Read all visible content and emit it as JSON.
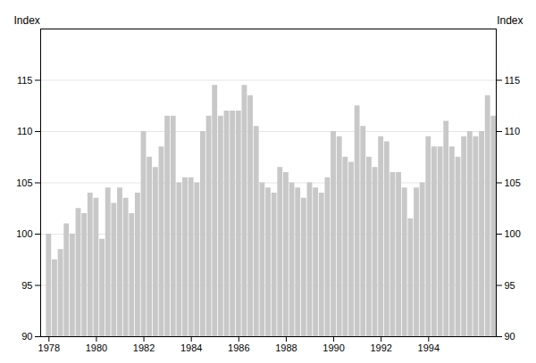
{
  "chart_data": {
    "type": "bar",
    "ylabel": "Index",
    "x": [
      1978,
      1978.25,
      1978.5,
      1978.75,
      1979,
      1979.25,
      1979.5,
      1979.75,
      1980,
      1980.25,
      1980.5,
      1980.75,
      1981,
      1981.25,
      1981.5,
      1981.75,
      1982,
      1982.25,
      1982.5,
      1982.75,
      1983,
      1983.25,
      1983.5,
      1983.75,
      1984,
      1984.25,
      1984.5,
      1984.75,
      1985,
      1985.25,
      1985.5,
      1985.75,
      1986,
      1986.25,
      1986.5,
      1986.75,
      1987,
      1987.25,
      1987.5,
      1987.75,
      1988,
      1988.25,
      1988.5,
      1988.75,
      1989,
      1989.25,
      1989.5,
      1989.75,
      1990,
      1990.25,
      1990.5,
      1990.75,
      1991,
      1991.25,
      1991.5,
      1991.75,
      1992,
      1992.25,
      1992.5,
      1992.75,
      1993,
      1993.25,
      1993.5,
      1993.75,
      1994,
      1994.25,
      1994.5,
      1994.75,
      1995,
      1995.25,
      1995.5,
      1995.75,
      1996,
      1996.25,
      1996.5,
      1996.75
    ],
    "values": [
      100.0,
      97.5,
      98.5,
      101.0,
      100.0,
      102.5,
      102.0,
      104.0,
      103.5,
      99.5,
      104.5,
      103.0,
      104.5,
      103.5,
      102.0,
      104.0,
      110.0,
      107.5,
      106.5,
      108.5,
      111.5,
      111.5,
      105.0,
      105.5,
      105.5,
      105.0,
      110.0,
      111.5,
      114.5,
      111.5,
      112.0,
      112.0,
      112.0,
      114.5,
      113.5,
      110.5,
      105.0,
      104.5,
      104.0,
      106.5,
      106.0,
      105.0,
      104.5,
      103.5,
      105.0,
      104.5,
      104.0,
      105.5,
      110.0,
      109.5,
      107.5,
      107.0,
      112.5,
      110.5,
      107.5,
      106.5,
      109.5,
      109.0,
      106.0,
      106.0,
      104.5,
      101.5,
      104.5,
      105.0,
      109.5,
      108.5,
      108.5,
      111.0,
      108.5,
      107.5,
      109.5,
      110.0,
      109.5,
      110.0,
      113.5,
      111.5
    ],
    "color": "#c8c8c8",
    "xlim": [
      1977.65,
      1996.85
    ],
    "xticks": [
      1978,
      1980,
      1982,
      1984,
      1986,
      1988,
      1990,
      1992,
      1994
    ],
    "ylim": [
      90,
      120
    ],
    "yticks": [
      90,
      95,
      100,
      105,
      110,
      115
    ],
    "grid": true
  }
}
